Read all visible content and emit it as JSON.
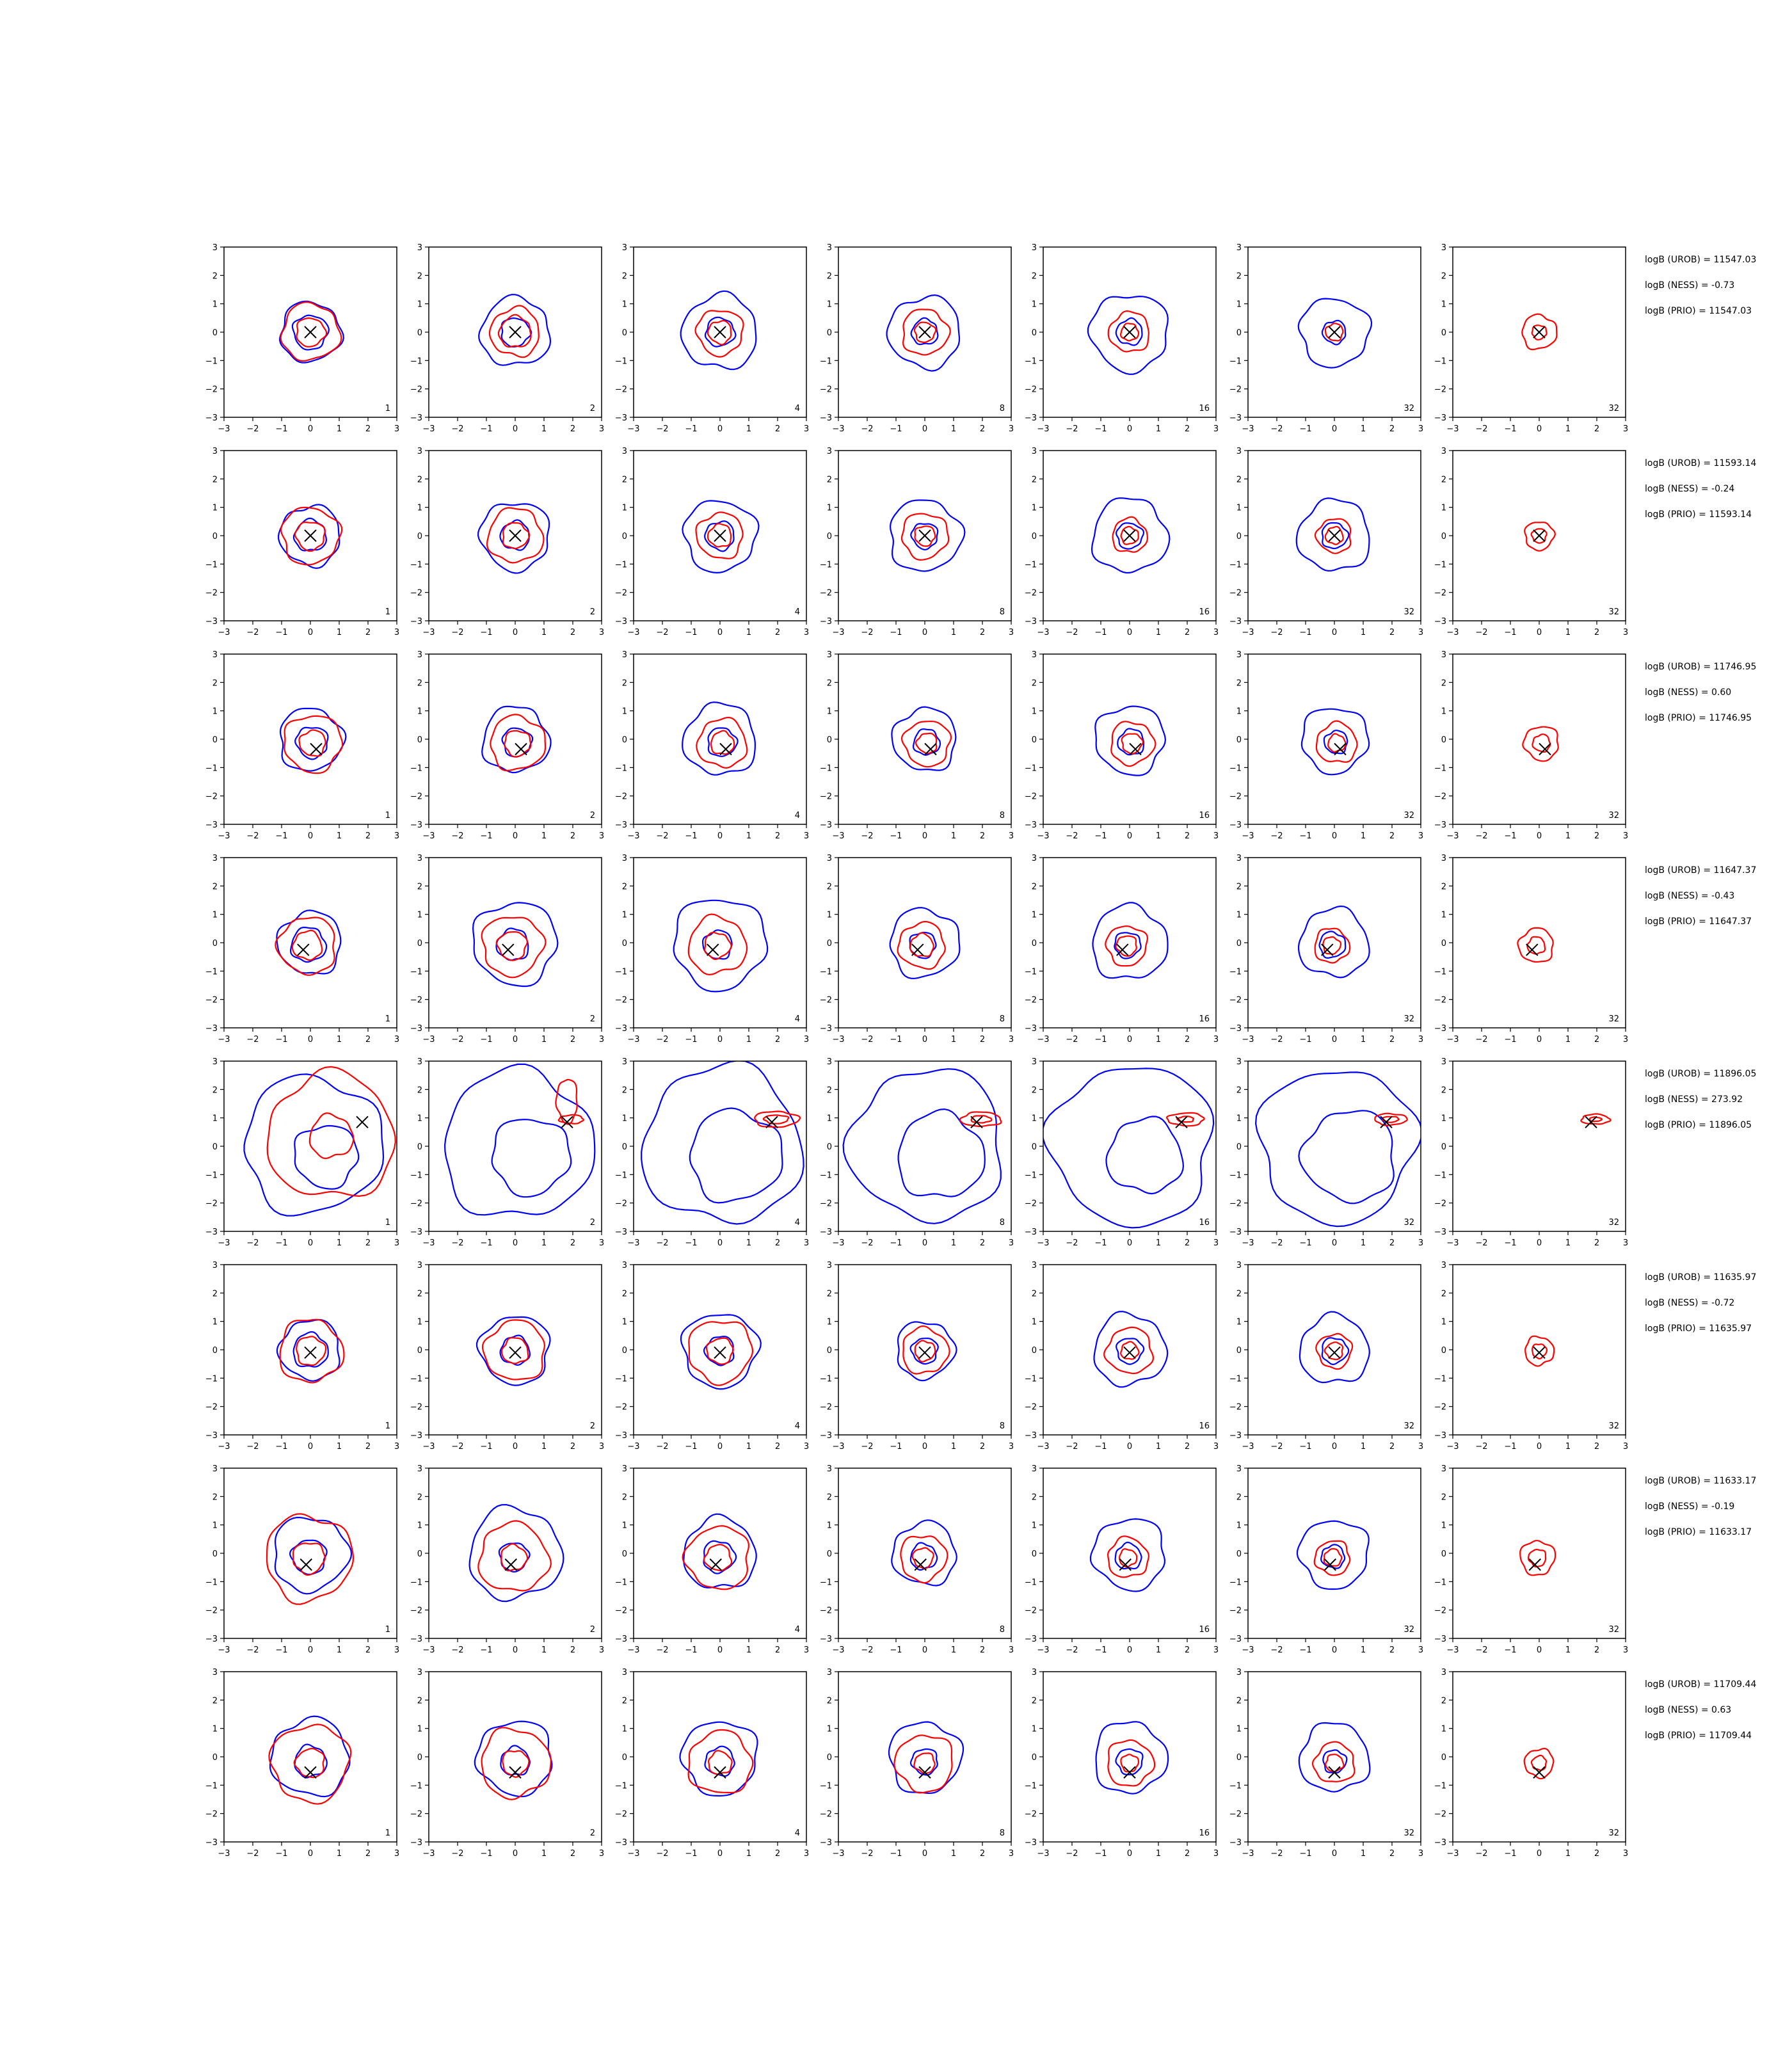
{
  "colors": {
    "blue": "#0000ff",
    "red": "#ff0000",
    "marker": "#000000",
    "axes": "#000000"
  },
  "column_labels": [
    "1",
    "2",
    "4",
    "8",
    "16",
    "32",
    "32"
  ],
  "chart_data": {
    "type": "contour-grid",
    "xlim": [
      -3,
      3
    ],
    "ylim": [
      -3,
      3
    ],
    "xticks": [
      -3,
      -2,
      -1,
      0,
      1,
      2,
      3
    ],
    "yticks": [
      -3,
      -2,
      -1,
      0,
      1,
      2,
      3
    ],
    "tick_labels": [
      "−3",
      "−2",
      "−1",
      "0",
      "1",
      "2",
      "3"
    ],
    "rows": [
      {
        "marker": [
          0.0,
          0.0
        ],
        "stats": [
          "logB (UROB) = 11547.03",
          "logB (NESS) = -0.73",
          "logB (PRIO) = 11547.03"
        ],
        "blue_radii": [
          [
            0.6,
            1.05
          ],
          [
            0.5,
            1.2
          ],
          [
            0.5,
            1.3
          ],
          [
            0.45,
            1.25
          ],
          [
            0.45,
            1.35
          ],
          [
            0.4,
            1.2
          ],
          []
        ],
        "red_radii": [
          [
            0.5,
            1.0
          ],
          [
            0.55,
            0.85
          ],
          [
            0.4,
            0.8
          ],
          [
            0.35,
            0.8
          ],
          [
            0.3,
            0.7
          ],
          [
            0.3
          ],
          [
            0.25,
            0.6
          ]
        ]
      },
      {
        "marker": [
          0.0,
          0.0
        ],
        "stats": [
          "logB (UROB) = 11593.14",
          "logB (NESS) = -0.24",
          "logB (PRIO) = 11593.14"
        ],
        "blue_radii": [
          [
            0.55,
            1.05
          ],
          [
            0.5,
            1.2
          ],
          [
            0.5,
            1.25
          ],
          [
            0.45,
            1.25
          ],
          [
            0.45,
            1.3
          ],
          [
            0.45,
            1.25
          ],
          []
        ],
        "red_radii": [
          [
            0.5,
            1.0
          ],
          [
            0.45,
            0.95
          ],
          [
            0.4,
            0.8
          ],
          [
            0.35,
            0.8
          ],
          [
            0.3,
            0.6
          ],
          [
            0.3,
            0.6
          ],
          [
            0.25,
            0.5
          ]
        ]
      },
      {
        "marker": [
          0.2,
          -0.35
        ],
        "stats": [
          "logB (UROB) = 11746.95",
          "logB (NESS) = 0.60",
          "logB (PRIO) = 11746.95"
        ],
        "blue_radii": [
          [
            0.55,
            1.1
          ],
          [
            0.5,
            1.15
          ],
          [
            0.5,
            1.25
          ],
          [
            0.45,
            1.1
          ],
          [
            0.45,
            1.2
          ],
          [
            0.4,
            1.15
          ],
          []
        ],
        "red_radii": [
          [
            0.45,
            1.0
          ],
          [
            0.45,
            0.95
          ],
          [
            0.4,
            0.85
          ],
          [
            0.35,
            0.8
          ],
          [
            0.35,
            0.75
          ],
          [
            0.3,
            0.7
          ],
          [
            0.3,
            0.6
          ]
        ]
      },
      {
        "marker": [
          -0.25,
          -0.25
        ],
        "stats": [
          "logB (UROB) = 11647.37",
          "logB (NESS) = -0.43",
          "logB (PRIO) = 11647.37"
        ],
        "blue_radii": [
          [
            0.6,
            1.1
          ],
          [
            0.55,
            1.45
          ],
          [
            0.5,
            1.6
          ],
          [
            0.45,
            1.2
          ],
          [
            0.45,
            1.3
          ],
          [
            0.45,
            1.2
          ],
          []
        ],
        "red_radii": [
          [
            0.5,
            1.0
          ],
          [
            0.5,
            1.05
          ],
          [
            0.45,
            1.0
          ],
          [
            0.4,
            0.8
          ],
          [
            0.35,
            0.7
          ],
          [
            0.3,
            0.6
          ],
          [
            0.3,
            0.6
          ]
        ]
      },
      {
        "marker": [
          1.8,
          0.85
        ],
        "stats": [
          "logB (UROB) = 11896.05",
          "logB (NESS) = 273.92",
          "logB (PRIO) = 11896.05"
        ],
        "blue_radii": [
          [
            1.1,
            2.4
          ],
          [
            1.35,
            2.6
          ],
          [
            1.6,
            2.75
          ],
          [
            1.5,
            2.65
          ],
          [
            1.3,
            2.8
          ],
          [
            1.6,
            2.7
          ],
          []
        ],
        "red_radii": [
          [
            0.75,
            2.2
          ],
          [
            0.3,
            0.6
          ],
          [
            0.3,
            0.55
          ],
          [
            0.25,
            0.5
          ],
          [
            0.2,
            0.45
          ],
          [
            0.2,
            0.4
          ],
          [
            0.15,
            0.35
          ]
        ]
      },
      {
        "marker": [
          0.0,
          -0.1
        ],
        "stats": [
          "logB (UROB) = 11635.97",
          "logB (NESS) = -0.72",
          "logB (PRIO) = 11635.97"
        ],
        "blue_radii": [
          [
            0.6,
            1.05
          ],
          [
            0.5,
            1.2
          ],
          [
            0.5,
            1.3
          ],
          [
            0.45,
            1.0
          ],
          [
            0.45,
            1.25
          ],
          [
            0.45,
            1.2
          ],
          []
        ],
        "red_radii": [
          [
            0.5,
            1.1
          ],
          [
            0.45,
            1.05
          ],
          [
            0.45,
            1.1
          ],
          [
            0.35,
            0.8
          ],
          [
            0.3,
            0.8
          ],
          [
            0.3,
            0.6
          ],
          [
            0.25,
            0.5
          ]
        ]
      },
      {
        "marker": [
          -0.15,
          -0.4
        ],
        "stats": [
          "logB (UROB) = 11633.17",
          "logB (NESS) = -0.19",
          "logB (PRIO) = 11633.17"
        ],
        "blue_radii": [
          [
            0.6,
            1.3
          ],
          [
            0.5,
            1.6
          ],
          [
            0.55,
            1.25
          ],
          [
            0.45,
            1.1
          ],
          [
            0.45,
            1.25
          ],
          [
            0.4,
            1.2
          ],
          []
        ],
        "red_radii": [
          [
            0.55,
            1.5
          ],
          [
            0.45,
            1.2
          ],
          [
            0.45,
            1.1
          ],
          [
            0.35,
            0.8
          ],
          [
            0.3,
            0.7
          ],
          [
            0.3,
            0.6
          ],
          [
            0.3,
            0.6
          ]
        ]
      },
      {
        "marker": [
          0.0,
          -0.55
        ],
        "stats": [
          "logB (UROB) = 11709.44",
          "logB (NESS) = 0.63",
          "logB (PRIO) = 11709.44"
        ],
        "blue_radii": [
          [
            0.55,
            1.35
          ],
          [
            0.5,
            1.3
          ],
          [
            0.5,
            1.3
          ],
          [
            0.45,
            1.25
          ],
          [
            0.45,
            1.25
          ],
          [
            0.4,
            1.2
          ],
          []
        ],
        "red_radii": [
          [
            0.5,
            1.35
          ],
          [
            0.45,
            1.2
          ],
          [
            0.4,
            1.1
          ],
          [
            0.35,
            1.0
          ],
          [
            0.3,
            0.8
          ],
          [
            0.3,
            0.7
          ],
          [
            0.25,
            0.5
          ]
        ]
      }
    ]
  }
}
